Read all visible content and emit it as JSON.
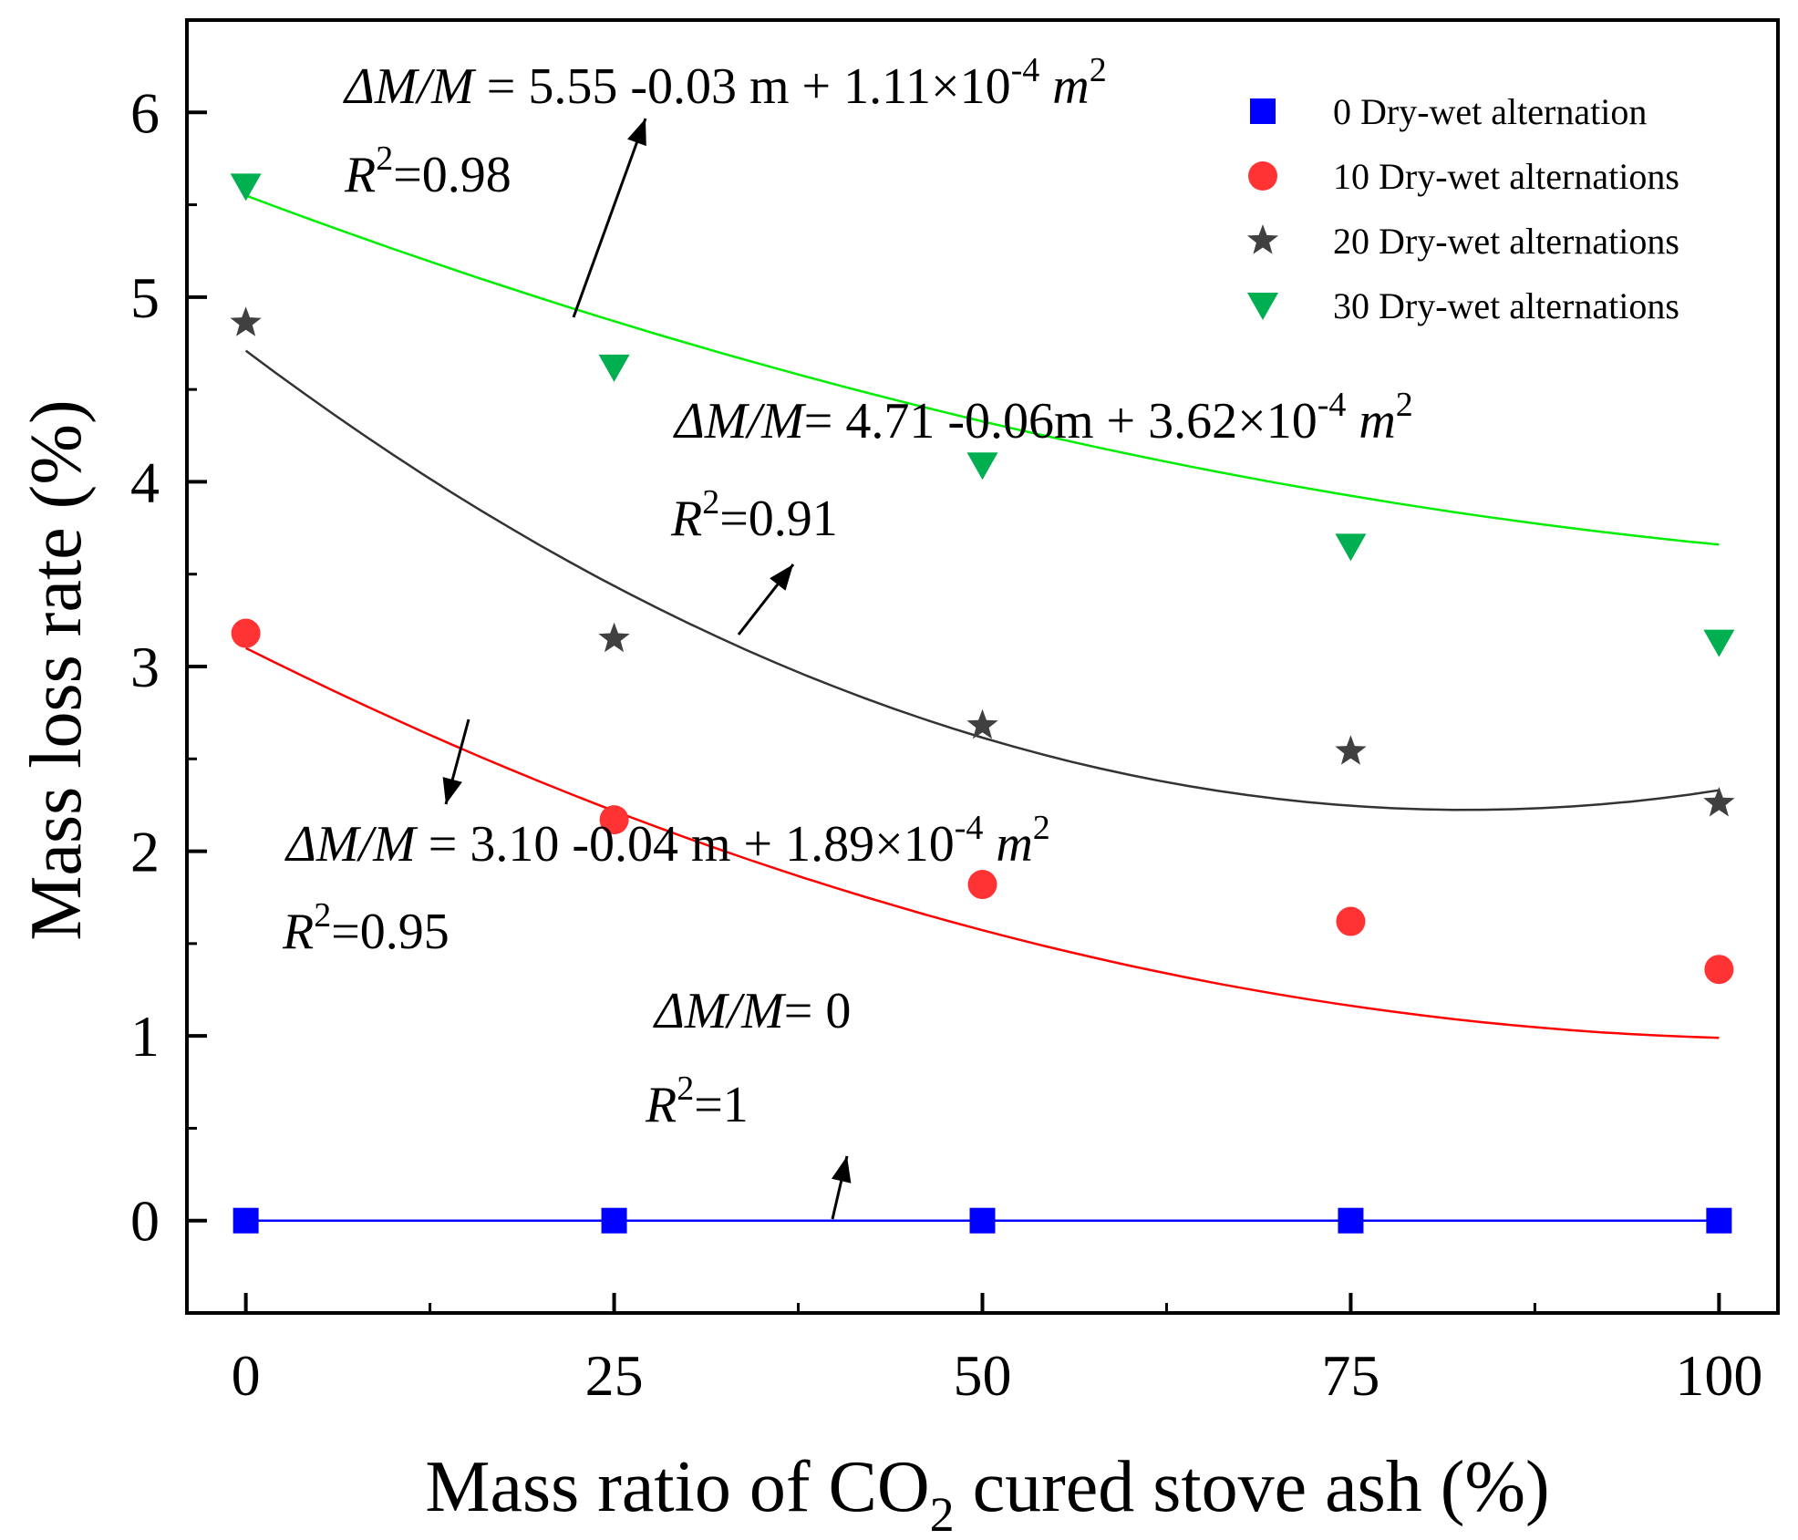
{
  "chart_data": {
    "type": "scatter",
    "title": "",
    "xlabel": "Mass ratio of CO",
    "xlabel_sub": "2",
    "xlabel_suffix": " cured stove ash (%)",
    "ylabel": "Mass loss rate (%)",
    "xlim": [
      -4,
      104
    ],
    "ylim": [
      -0.5,
      6.5
    ],
    "xticks": [
      0,
      25,
      50,
      75,
      100
    ],
    "xtick_labels": [
      "0",
      "25",
      "50",
      "75",
      "100"
    ],
    "yticks": [
      0,
      1,
      2,
      3,
      4,
      5,
      6
    ],
    "ytick_labels": [
      "0",
      "1",
      "2",
      "3",
      "4",
      "5",
      "6"
    ],
    "grid": false,
    "legend_position": "top-right",
    "x": [
      0,
      25,
      50,
      75,
      100
    ],
    "series": [
      {
        "name": "0 Dry-wet alternation",
        "marker": "square",
        "color": "#0000ff",
        "values": [
          0,
          0,
          0,
          0,
          0
        ],
        "fit": {
          "a": 0,
          "b": 0,
          "c": 0
        },
        "fit_color": "#0000ff",
        "equation_lhs": "ΔM/M",
        "equation_rhs": "= 0",
        "r2": "=1"
      },
      {
        "name": "10 Dry-wet alternations",
        "marker": "circle",
        "color": "#ff3333",
        "values": [
          3.18,
          2.17,
          1.82,
          1.62,
          1.36
        ],
        "fit": {
          "a": 3.1,
          "b": -0.04,
          "c": 0.000189
        },
        "fit_color": "#ff0000",
        "equation_lhs": "ΔM/M",
        "equation_rhs": " = 3.10 -0.04 m + 1.89×10",
        "equation_exp": "-4",
        "equation_tail": " m",
        "equation_tail_exp": "2",
        "r2": "=0.95"
      },
      {
        "name": "20 Dry-wet alternations",
        "marker": "star",
        "color": "#404040",
        "values": [
          4.86,
          3.15,
          2.68,
          2.54,
          2.26
        ],
        "fit": {
          "a": 4.71,
          "b": -0.06,
          "c": 0.000362
        },
        "fit_color": "#333333",
        "equation_lhs": "ΔM/M",
        "equation_rhs": "= 4.71 -0.06m + 3.62×10",
        "equation_exp": "-4",
        "equation_tail": " m",
        "equation_tail_exp": "2",
        "r2": "=0.91"
      },
      {
        "name": "30 Dry-wet alternations",
        "marker": "triangle-down",
        "color": "#00b050",
        "values": [
          5.6,
          4.62,
          4.09,
          3.65,
          3.13
        ],
        "fit": {
          "a": 5.55,
          "b": -0.03,
          "c": 0.000111
        },
        "fit_color": "#00ee00",
        "equation_lhs": "ΔM/M",
        "equation_rhs": " = 5.55 -0.03 m + 1.11×10",
        "equation_exp": "-4",
        "equation_tail": " m",
        "equation_tail_exp": "2",
        "r2": "=0.98"
      }
    ],
    "r_symbol": "R",
    "r_exp": "2"
  }
}
